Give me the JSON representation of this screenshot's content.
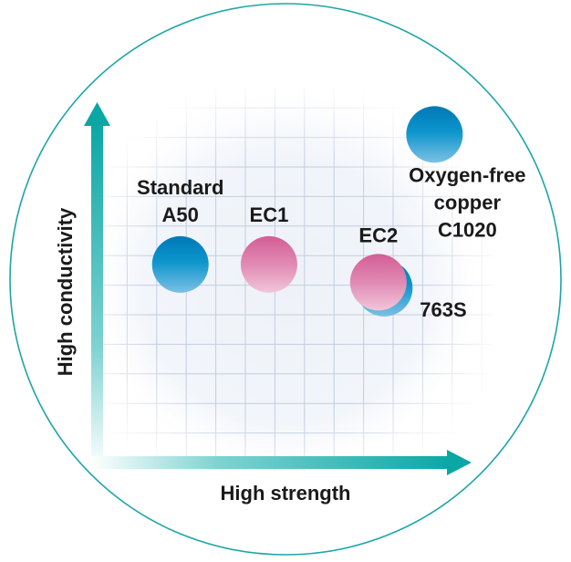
{
  "chart_data": {
    "type": "scatter",
    "title": "",
    "xlabel": "High strength",
    "ylabel": "High conductivity",
    "xlim": [
      0,
      12.5
    ],
    "ylim": [
      0,
      12.5
    ],
    "grid": true,
    "points": [
      {
        "name": "Standard A50",
        "label_lines": [
          "Standard",
          "A50"
        ],
        "x": 2.8,
        "y": 6.7,
        "color": "#0a86c0",
        "group": "blue"
      },
      {
        "name": "EC1",
        "label_lines": [
          "EC1"
        ],
        "x": 5.8,
        "y": 6.7,
        "color": "#d8679c",
        "group": "pink"
      },
      {
        "name": "763S",
        "label_lines": [
          "763S"
        ],
        "x": 9.7,
        "y": 5.9,
        "color": "#0a86c0",
        "group": "blue"
      },
      {
        "name": "EC2",
        "label_lines": [
          "EC2"
        ],
        "x": 9.5,
        "y": 6.1,
        "color": "#d8679c",
        "group": "pink"
      },
      {
        "name": "Oxygen-free copper C1020",
        "label_lines": [
          "Oxygen-free",
          "copper",
          "C1020"
        ],
        "x": 11.4,
        "y": 11.1,
        "color": "#0a86c0",
        "group": "blue"
      }
    ]
  },
  "colors": {
    "accent": "#0aa7a5",
    "grid": "#c3cde0",
    "blue": "#0a86c0",
    "pink": "#d8679c"
  }
}
